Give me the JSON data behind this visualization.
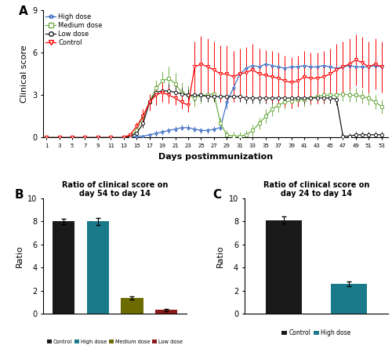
{
  "days": [
    1,
    3,
    5,
    7,
    9,
    11,
    13,
    14,
    15,
    16,
    17,
    18,
    19,
    20,
    21,
    22,
    23,
    24,
    25,
    26,
    27,
    28,
    29,
    30,
    31,
    32,
    33,
    34,
    35,
    36,
    37,
    38,
    39,
    40,
    41,
    42,
    43,
    44,
    45,
    46,
    47,
    48,
    49,
    50,
    51,
    52,
    53
  ],
  "high_dose": [
    0,
    0,
    0,
    0,
    0,
    0,
    0,
    0.05,
    0.1,
    0.1,
    0.2,
    0.3,
    0.4,
    0.5,
    0.6,
    0.7,
    0.7,
    0.6,
    0.5,
    0.5,
    0.6,
    0.7,
    2.5,
    3.5,
    4.5,
    4.9,
    5.1,
    5.0,
    5.2,
    5.1,
    5.0,
    4.9,
    5.0,
    5.0,
    5.1,
    5.0,
    5.0,
    5.1,
    5.0,
    4.9,
    5.0,
    5.1,
    5.0,
    5.0,
    5.0,
    5.1,
    5.0
  ],
  "high_dose_err": [
    0,
    0,
    0,
    0,
    0,
    0,
    0,
    0.05,
    0.1,
    0.1,
    0.1,
    0.2,
    0.2,
    0.2,
    0.2,
    0.2,
    0.2,
    0.2,
    0.2,
    0.2,
    0.2,
    0.2,
    0.5,
    0.5,
    0.5,
    0.5,
    0.5,
    0.5,
    0.5,
    0.5,
    0.5,
    0.4,
    0.4,
    0.4,
    0.4,
    0.4,
    0.4,
    0.4,
    0.4,
    0.4,
    0.4,
    0.4,
    0.4,
    0.4,
    0.4,
    0.4,
    0.4
  ],
  "medium_dose": [
    0,
    0,
    0,
    0,
    0,
    0,
    0,
    0.1,
    0.5,
    1.5,
    2.5,
    3.5,
    4.0,
    4.2,
    3.8,
    3.2,
    3.0,
    2.8,
    3.0,
    3.0,
    3.1,
    1.0,
    0.2,
    0.1,
    0.1,
    0.2,
    0.5,
    1.0,
    1.5,
    2.0,
    2.3,
    2.5,
    2.6,
    2.7,
    2.7,
    2.8,
    2.9,
    3.0,
    3.0,
    3.0,
    3.1,
    3.0,
    3.0,
    2.9,
    2.8,
    2.5,
    2.2
  ],
  "medium_dose_err": [
    0,
    0,
    0,
    0,
    0,
    0,
    0,
    0.1,
    0.2,
    0.4,
    0.5,
    0.6,
    0.7,
    0.8,
    0.8,
    0.7,
    0.7,
    0.6,
    0.6,
    0.5,
    0.5,
    0.4,
    0.3,
    0.3,
    0.3,
    0.3,
    0.4,
    0.4,
    0.5,
    0.5,
    0.5,
    0.5,
    0.5,
    0.5,
    0.5,
    0.5,
    0.5,
    0.5,
    0.5,
    0.5,
    0.5,
    0.5,
    0.5,
    0.5,
    0.5,
    0.5,
    0.5
  ],
  "low_dose": [
    0,
    0,
    0,
    0,
    0,
    0,
    0,
    0.1,
    0.3,
    1.0,
    2.5,
    3.2,
    3.3,
    3.3,
    3.2,
    3.1,
    3.0,
    3.0,
    3.0,
    2.9,
    2.9,
    2.9,
    2.9,
    2.9,
    2.9,
    2.8,
    2.8,
    2.8,
    2.8,
    2.8,
    2.8,
    2.8,
    2.8,
    2.8,
    2.8,
    2.8,
    2.8,
    2.8,
    2.8,
    2.7,
    0.1,
    0.1,
    0.2,
    0.2,
    0.2,
    0.2,
    0.2
  ],
  "low_dose_err": [
    0,
    0,
    0,
    0,
    0,
    0,
    0,
    0.05,
    0.1,
    0.3,
    0.5,
    0.5,
    0.5,
    0.5,
    0.5,
    0.4,
    0.4,
    0.4,
    0.4,
    0.4,
    0.4,
    0.4,
    0.4,
    0.4,
    0.4,
    0.4,
    0.4,
    0.4,
    0.4,
    0.4,
    0.4,
    0.4,
    0.4,
    0.4,
    0.4,
    0.4,
    0.4,
    0.4,
    0.4,
    0.4,
    0.2,
    0.2,
    0.2,
    0.2,
    0.2,
    0.2,
    0.2
  ],
  "control": [
    0,
    0,
    0,
    0,
    0,
    0,
    0,
    0.2,
    0.8,
    1.5,
    2.5,
    3.0,
    3.2,
    3.0,
    2.8,
    2.5,
    2.3,
    5.0,
    5.2,
    5.0,
    4.8,
    4.5,
    4.5,
    4.3,
    4.5,
    4.6,
    4.8,
    4.5,
    4.4,
    4.3,
    4.2,
    4.0,
    3.9,
    4.0,
    4.3,
    4.2,
    4.2,
    4.3,
    4.5,
    4.8,
    5.0,
    5.2,
    5.5,
    5.3,
    5.0,
    5.2,
    5.0
  ],
  "control_err": [
    0,
    0,
    0,
    0,
    0,
    0,
    0,
    0.1,
    0.3,
    0.5,
    0.6,
    0.7,
    0.7,
    0.6,
    0.5,
    0.5,
    0.5,
    1.8,
    2.0,
    2.0,
    2.0,
    2.0,
    2.0,
    1.8,
    1.8,
    1.8,
    1.8,
    1.8,
    1.8,
    1.8,
    1.8,
    1.8,
    1.8,
    1.8,
    1.8,
    1.8,
    1.8,
    1.8,
    1.8,
    1.8,
    1.8,
    1.8,
    1.8,
    1.8,
    1.8,
    1.8,
    1.8
  ],
  "colors": {
    "high_dose": "#4472C4",
    "medium_dose": "#70AD47",
    "low_dose": "#1a1a1a",
    "control": "#FF0000"
  },
  "bar_B_labels": [
    "Control",
    "High dose",
    "Medium dose",
    "Low dose"
  ],
  "bar_B_values": [
    8.0,
    8.0,
    1.4,
    0.35
  ],
  "bar_B_errors": [
    0.25,
    0.3,
    0.15,
    0.1
  ],
  "bar_B_colors": [
    "#1a1a1a",
    "#1a7a8a",
    "#6b6b00",
    "#8b1a1a"
  ],
  "bar_C_labels": [
    "Control",
    "High dose"
  ],
  "bar_C_values": [
    8.1,
    2.6
  ],
  "bar_C_errors": [
    0.3,
    0.2
  ],
  "bar_C_colors": [
    "#1a1a1a",
    "#1a7a8a"
  ],
  "title_B": "Ratio of clinical score on\nday 54 to day 14",
  "title_C": "Ratio of clinical score on\nday 24 to day 14",
  "ylabel_A": "Clinical score",
  "xlabel_A": "Days postimmunization",
  "ylabel_BC": "Ratio",
  "ylim_A": [
    0,
    9
  ],
  "ylim_BC": [
    0,
    10
  ],
  "yticks_A": [
    0,
    3,
    6,
    9
  ],
  "yticks_BC": [
    0,
    2,
    4,
    6,
    8,
    10
  ],
  "xticks_A": [
    1,
    3,
    5,
    7,
    9,
    11,
    13,
    15,
    17,
    19,
    21,
    23,
    25,
    27,
    29,
    31,
    33,
    35,
    37,
    39,
    41,
    43,
    45,
    47,
    49,
    51,
    53
  ]
}
